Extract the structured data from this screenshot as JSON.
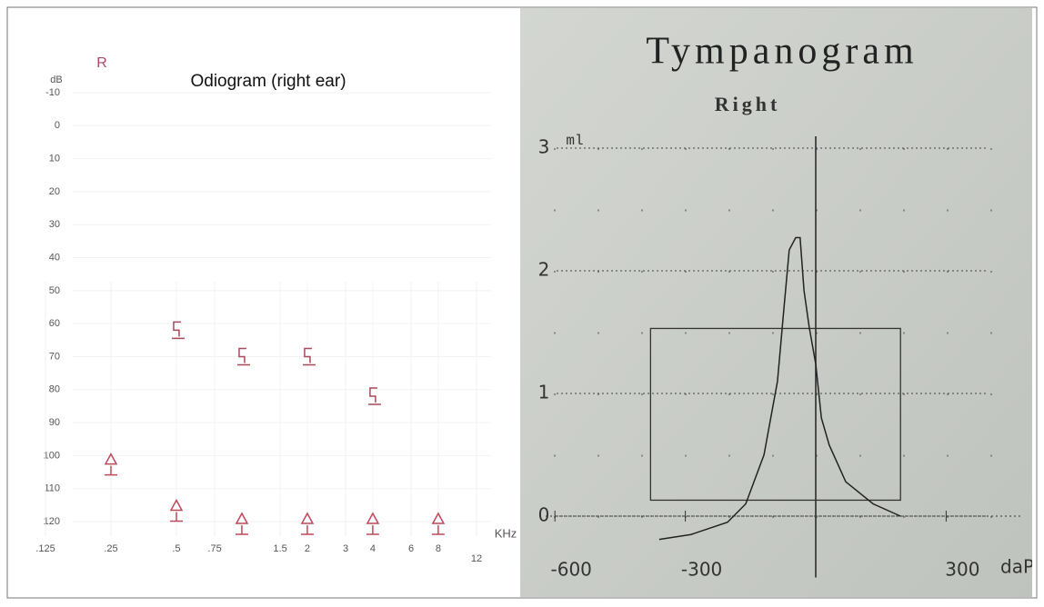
{
  "chart_data": [
    {
      "type": "scatter",
      "title": "Odiogram (right ear)",
      "ear_label": "R",
      "ylabel": "dB",
      "xlabel": "KHz",
      "log_x": true,
      "invert_y": true,
      "xlim": [
        0.125,
        12
      ],
      "ylim": [
        -10,
        120
      ],
      "xticks": [
        {
          "value": 0.125,
          "label": ".125"
        },
        {
          "value": 0.25,
          "label": ".25"
        },
        {
          "value": 0.5,
          "label": ".5"
        },
        {
          "value": 0.75,
          "label": ".75"
        },
        {
          "value": 1.5,
          "label": "1.5"
        },
        {
          "value": 2,
          "label": "2"
        },
        3,
        {
          "value": 4,
          "label": "4"
        },
        6,
        8,
        12
      ],
      "yticks": [
        -10,
        0,
        10,
        20,
        30,
        40,
        50,
        60,
        70,
        80,
        90,
        100,
        110,
        120
      ],
      "series": [
        {
          "marker": "bracket",
          "color": "#a8485a",
          "x": [
            0.5,
            1,
            2,
            4
          ],
          "values": [
            62,
            70,
            70,
            82
          ]
        },
        {
          "marker": "triangle",
          "color": "#c0485a",
          "x": [
            0.25,
            0.5,
            1,
            2,
            4,
            8
          ],
          "values": [
            102,
            116,
            120,
            120,
            120,
            120
          ]
        }
      ]
    },
    {
      "type": "line",
      "title": "Tympanogram",
      "subtitle": "Right",
      "ylabel": "ml",
      "xlabel": "daPa",
      "xlim": [
        -600,
        400
      ],
      "ylim": [
        -0.5,
        3.3
      ],
      "xticks": [
        -600,
        -300,
        300
      ],
      "yticks": [
        0,
        1,
        2,
        3
      ],
      "grid": true,
      "color": "#222222",
      "x": [
        -360,
        -287,
        -203,
        -161,
        -119,
        -88,
        -73,
        -61,
        -46,
        -36,
        -27,
        -15,
        0,
        13,
        31,
        69,
        132,
        195
      ],
      "values": [
        -0.19,
        -0.15,
        -0.05,
        0.1,
        0.5,
        1.1,
        1.7,
        2.17,
        2.27,
        2.27,
        1.84,
        1.54,
        1.24,
        0.8,
        0.58,
        0.28,
        0.1,
        0
      ],
      "region": {
        "x": [
          -380,
          195
        ],
        "y": [
          0.13,
          1.53
        ]
      }
    }
  ]
}
